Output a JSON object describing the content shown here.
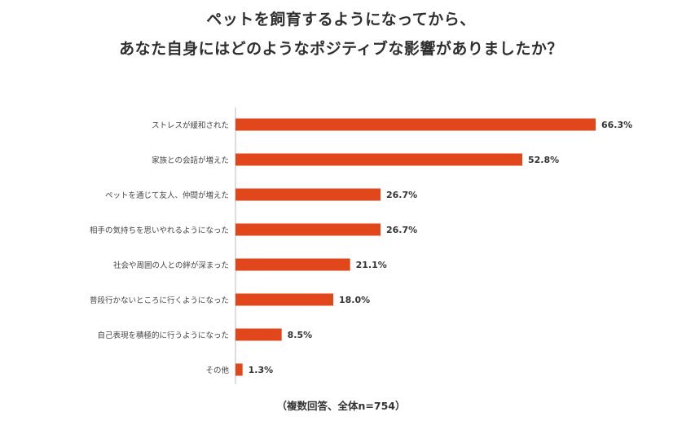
{
  "title_line1": "ペットを飼育するようになってから、",
  "title_line2": "あなた自身にはどのようなポジティブな影響がありましたか？",
  "note": "（複数回答、全体n=754）",
  "colors": {
    "bar": "#e2461b",
    "axis": "#bbbbbb"
  },
  "chart_data": {
    "type": "bar",
    "orientation": "horizontal",
    "title": "ペットを飼育するようになってから、あなた自身にはどのようなポジティブな影響がありましたか？",
    "categories": [
      "ストレスが緩和された",
      "家族との会話が増えた",
      "ペットを通じて友人、仲間が増えた",
      "相手の気持ちを思いやれるようになった",
      "社会や周囲の人との絆が深まった",
      "普段行かないところに行くようになった",
      "自己表現を積極的に行うようになった",
      "その他"
    ],
    "values": [
      66.3,
      52.8,
      26.7,
      26.7,
      21.1,
      18.0,
      8.5,
      1.3
    ],
    "value_labels": [
      "66.3%",
      "52.8%",
      "26.7%",
      "26.7%",
      "21.1%",
      "18.0%",
      "8.5%",
      "1.3%"
    ],
    "unit": "%",
    "xlim": [
      0,
      66.3
    ]
  }
}
